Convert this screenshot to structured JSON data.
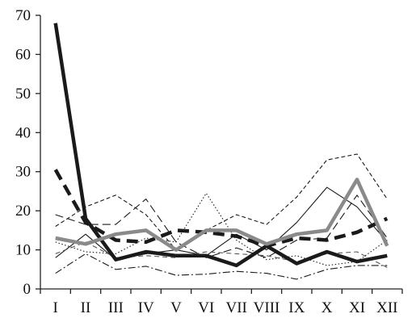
{
  "chart_data": {
    "type": "line",
    "title": "",
    "xlabel": "",
    "ylabel": "",
    "categories": [
      "I",
      "II",
      "III",
      "IV",
      "V",
      "VI",
      "VII",
      "VIII",
      "IX",
      "X",
      "XI",
      "XII"
    ],
    "ylim": [
      0,
      70
    ],
    "yticks": [
      "0",
      "10",
      "20",
      "30",
      "40",
      "50",
      "60",
      "70"
    ],
    "grid": false,
    "legend": "none",
    "series": [
      {
        "values": [
          68,
          18,
          7.5,
          9.5,
          8.5,
          8.5,
          6,
          11,
          6.5,
          9.5,
          7,
          8.5
        ],
        "color": "#1a1a1a",
        "style": "solid-thick"
      },
      {
        "values": [
          30.5,
          17,
          12.5,
          12,
          15,
          14.5,
          13.5,
          11,
          13,
          12.5,
          14.5,
          18
        ],
        "color": "#1a1a1a",
        "style": "dashed-thick"
      },
      {
        "values": [
          13,
          11.5,
          14,
          15,
          10,
          15,
          15,
          11.5,
          14,
          15,
          28,
          11
        ],
        "color": "#8a8a8a",
        "style": "solid-gray-thick"
      },
      {
        "values": [
          16,
          21,
          24,
          19,
          10,
          15,
          19,
          16.5,
          23.5,
          33,
          34.5,
          23
        ],
        "color": "#1a1a1a",
        "style": "dashed-thin"
      },
      {
        "values": [
          8,
          14,
          7.5,
          9,
          10,
          8.5,
          14,
          10,
          17,
          26,
          21,
          12
        ],
        "color": "#1a1a1a",
        "style": "solid-thin"
      },
      {
        "values": [
          19,
          16.5,
          16.5,
          23,
          12,
          8,
          10.5,
          8,
          12.5,
          13,
          24,
          13
        ],
        "color": "#1a1a1a",
        "style": "longdash-thin"
      },
      {
        "values": [
          12,
          9.5,
          9,
          13,
          12,
          24.5,
          12.5,
          7.5,
          8.5,
          6,
          7,
          12.5
        ],
        "color": "#1a1a1a",
        "style": "dotted"
      },
      {
        "values": [
          4,
          9,
          5,
          5.8,
          3.5,
          3.8,
          4.5,
          4,
          2.5,
          5,
          6,
          6
        ],
        "color": "#1a1a1a",
        "style": "dashdot"
      },
      {
        "values": [
          9,
          12,
          8,
          8.5,
          8,
          9.5,
          9,
          8.5,
          7,
          9,
          9.5,
          5.5
        ],
        "color": "#555555",
        "style": "dash-thin-gray"
      }
    ]
  }
}
